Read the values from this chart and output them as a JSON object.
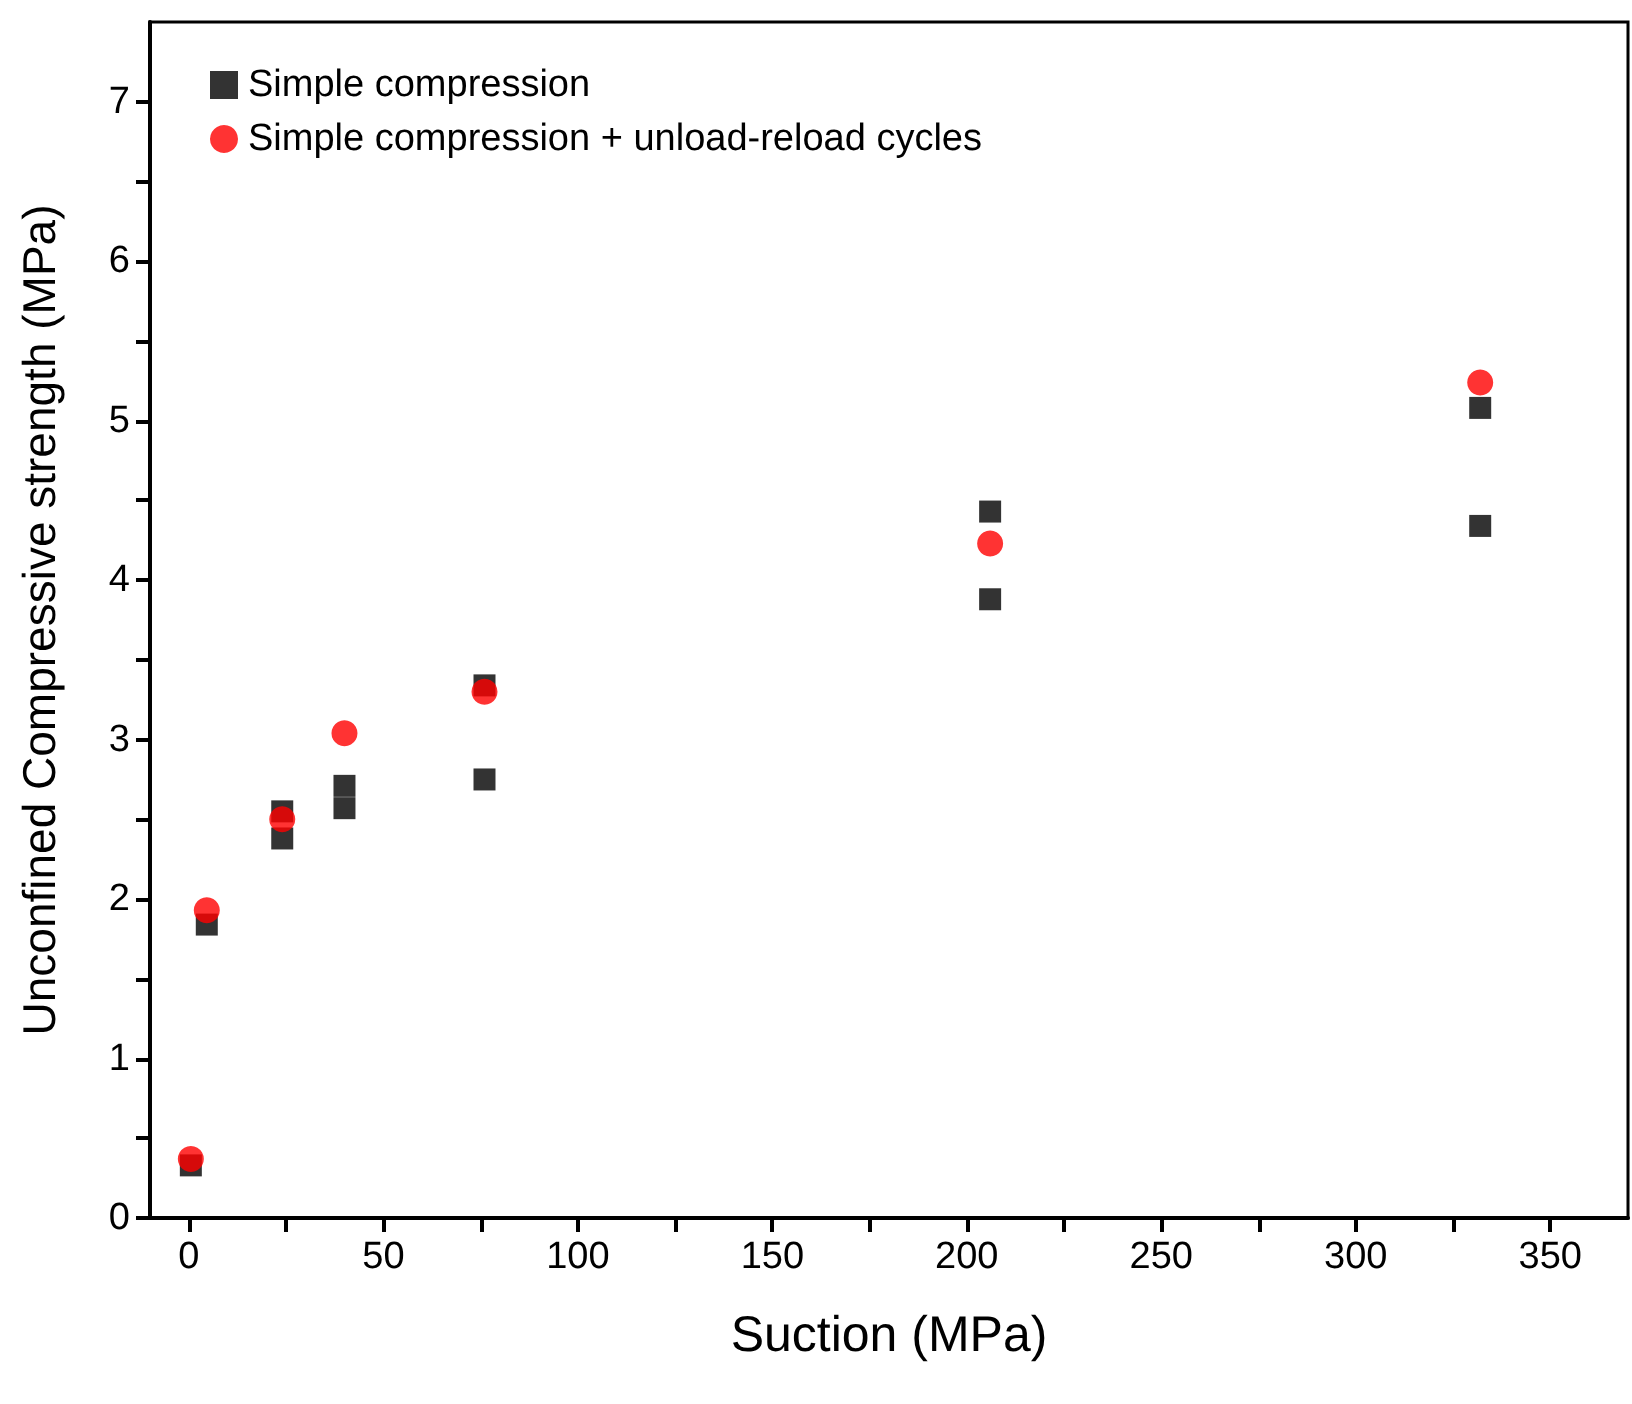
{
  "chart_data": {
    "type": "scatter",
    "xlabel": "Suction (MPa)",
    "ylabel": "Unconfined Compressive strength (MPa)",
    "xlim": [
      -10,
      370
    ],
    "ylim": [
      0,
      7.5
    ],
    "xticks": [
      0,
      {
        "value": 25,
        "label": null
      },
      50,
      {
        "value": 75,
        "label": null
      },
      100,
      {
        "value": 125,
        "label": null
      },
      150,
      {
        "value": 175,
        "label": null
      },
      200,
      {
        "value": 225,
        "label": null
      },
      250,
      {
        "value": 275,
        "label": null
      },
      300,
      {
        "value": 325,
        "label": null
      },
      350
    ],
    "yticks": [
      0,
      {
        "value": 0.5,
        "label": null
      },
      1,
      {
        "value": 1.5,
        "label": null
      },
      2,
      {
        "value": 2.5,
        "label": null
      },
      3,
      {
        "value": 3.5,
        "label": null
      },
      4,
      {
        "value": 4.5,
        "label": null
      },
      5,
      {
        "value": 5.5,
        "label": null
      },
      6,
      {
        "value": 6.5,
        "label": null
      },
      7
    ],
    "grid": false,
    "legend": "top left",
    "series": [
      {
        "name": "Simple compression",
        "color": "#000000",
        "marker": "square",
        "x": [
          0.5,
          4.6,
          24,
          24,
          40,
          40,
          76,
          76,
          206,
          206,
          332,
          332
        ],
        "values": [
          0.33,
          1.84,
          2.55,
          2.38,
          2.71,
          2.57,
          3.34,
          2.75,
          4.43,
          3.88,
          5.08,
          4.34
        ]
      },
      {
        "name": "Simple compression + unload-reload cycles",
        "color": "#ff0000",
        "marker": "circle",
        "x": [
          0.5,
          4.6,
          24,
          40,
          76,
          206,
          332
        ],
        "values": [
          0.37,
          1.93,
          2.5,
          3.04,
          3.3,
          4.23,
          5.24
        ]
      }
    ]
  }
}
